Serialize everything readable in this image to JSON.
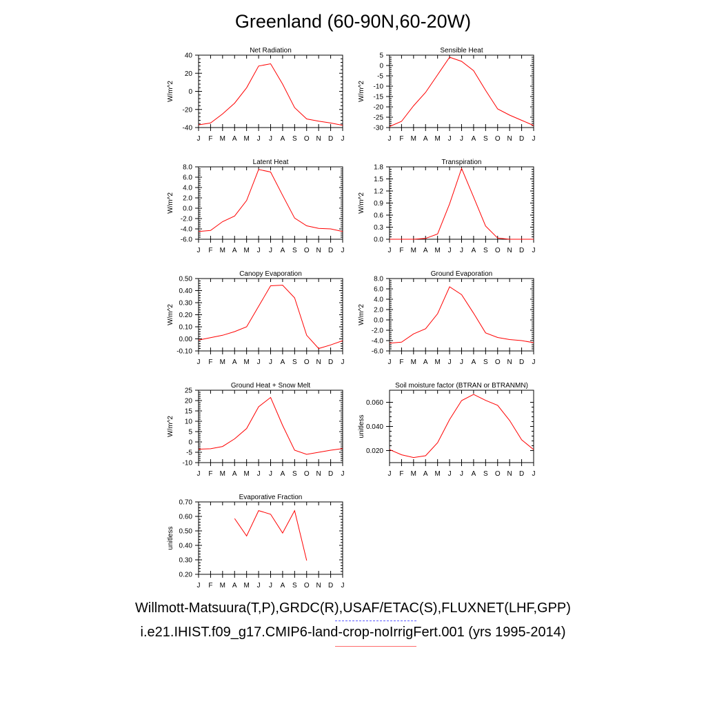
{
  "title": "Greenland (60-90N,60-20W)",
  "legend": {
    "obs": "Willmott-Matsuura(T,P),GRDC(R),USAF/ETAC(S),FLUXNET(LHF,GPP)",
    "model": "i.e21.IHIST.f09_g17.CMIP6-land-crop-noIrrigFert.001 (yrs 1995-2014)",
    "obs_color": "#5a5aff",
    "model_color": "#ff0000"
  },
  "chart_data": [
    {
      "type": "line",
      "title": "Net Radiation",
      "ylabel": "W/m^2",
      "categories": [
        "J",
        "F",
        "M",
        "A",
        "M",
        "J",
        "J",
        "A",
        "S",
        "O",
        "N",
        "D",
        "J"
      ],
      "ylim": [
        -40,
        40
      ],
      "yticks": [
        -40,
        -20,
        0,
        20,
        40
      ],
      "yticklabels": [
        "-40",
        "-20",
        "0",
        "20",
        "40"
      ],
      "series": [
        {
          "values": [
            -37,
            -35,
            -25,
            -13,
            4,
            28,
            30.5,
            8,
            -18,
            -30.5,
            -33,
            -35,
            -37.5
          ]
        }
      ]
    },
    {
      "type": "line",
      "title": "Sensible Heat",
      "ylabel": "W/m^2",
      "categories": [
        "J",
        "F",
        "M",
        "A",
        "M",
        "J",
        "J",
        "A",
        "S",
        "O",
        "N",
        "D",
        "J"
      ],
      "ylim": [
        -30,
        5
      ],
      "yticks": [
        -30,
        -25,
        -20,
        -15,
        -10,
        -5,
        0,
        5
      ],
      "yticklabels": [
        "-30",
        "-25",
        "-20",
        "-15",
        "-10",
        "-5",
        "0",
        "5"
      ],
      "series": [
        {
          "values": [
            -29.5,
            -27,
            -19.5,
            -13,
            -4.5,
            4,
            2,
            -2.5,
            -12,
            -21,
            -24,
            -26.5,
            -29
          ]
        }
      ]
    },
    {
      "type": "line",
      "title": "Latent Heat",
      "ylabel": "W/m^2",
      "categories": [
        "J",
        "F",
        "M",
        "A",
        "M",
        "J",
        "J",
        "A",
        "S",
        "O",
        "N",
        "D",
        "J"
      ],
      "ylim": [
        -6,
        8
      ],
      "yticks": [
        -6,
        -4,
        -2,
        0,
        2,
        4,
        6,
        8
      ],
      "yticklabels": [
        "-6.0",
        "-4.0",
        "-2.0",
        "0.0",
        "2.0",
        "4.0",
        "6.0",
        "8.0"
      ],
      "series": [
        {
          "values": [
            -4.5,
            -4.3,
            -2.6,
            -1.5,
            1.5,
            7.5,
            7.0,
            2.5,
            -1.9,
            -3.4,
            -3.9,
            -4.0,
            -4.5
          ]
        }
      ]
    },
    {
      "type": "line",
      "title": "Transpiration",
      "ylabel": "W/m^2",
      "categories": [
        "J",
        "F",
        "M",
        "A",
        "M",
        "J",
        "J",
        "A",
        "S",
        "O",
        "N",
        "D",
        "J"
      ],
      "ylim": [
        0,
        1.8
      ],
      "yticks": [
        0,
        0.3,
        0.6,
        0.9,
        1.2,
        1.5,
        1.8
      ],
      "yticklabels": [
        "0.0",
        "0.3",
        "0.6",
        "0.9",
        "1.2",
        "1.5",
        "1.8"
      ],
      "series": [
        {
          "values": [
            0,
            0,
            0,
            0.02,
            0.13,
            0.88,
            1.76,
            1.05,
            0.33,
            0.03,
            0,
            0,
            0
          ]
        }
      ]
    },
    {
      "type": "line",
      "title": "Canopy Evaporation",
      "ylabel": "W/m^2",
      "categories": [
        "J",
        "F",
        "M",
        "A",
        "M",
        "J",
        "J",
        "A",
        "S",
        "O",
        "N",
        "D",
        "J"
      ],
      "ylim": [
        -0.1,
        0.5
      ],
      "yticks": [
        -0.1,
        0,
        0.1,
        0.2,
        0.3,
        0.4,
        0.5
      ],
      "yticklabels": [
        "-0.10",
        "0.00",
        "0.10",
        "0.20",
        "0.30",
        "0.40",
        "0.50"
      ],
      "series": [
        {
          "values": [
            -0.01,
            0.01,
            0.03,
            0.06,
            0.1,
            0.27,
            0.44,
            0.445,
            0.34,
            0.03,
            -0.08,
            -0.05,
            -0.015
          ]
        }
      ]
    },
    {
      "type": "line",
      "title": "Ground Evaporation",
      "ylabel": "W/m^2",
      "categories": [
        "J",
        "F",
        "M",
        "A",
        "M",
        "J",
        "J",
        "A",
        "S",
        "O",
        "N",
        "D",
        "J"
      ],
      "ylim": [
        -6,
        8
      ],
      "yticks": [
        -6,
        -4,
        -2,
        0,
        2,
        4,
        6,
        8
      ],
      "yticklabels": [
        "-6.0",
        "-4.0",
        "-2.0",
        "0.0",
        "2.0",
        "4.0",
        "6.0",
        "8.0"
      ],
      "series": [
        {
          "values": [
            -4.5,
            -4.3,
            -2.7,
            -1.7,
            1.2,
            6.4,
            4.9,
            1.3,
            -2.5,
            -3.4,
            -3.8,
            -4.0,
            -4.4
          ]
        }
      ]
    },
    {
      "type": "line",
      "title": "Ground Heat + Snow Melt",
      "ylabel": "W/m^2",
      "categories": [
        "J",
        "F",
        "M",
        "A",
        "M",
        "J",
        "J",
        "A",
        "S",
        "O",
        "N",
        "D",
        "J"
      ],
      "ylim": [
        -10,
        25
      ],
      "yticks": [
        -10,
        -5,
        0,
        5,
        10,
        15,
        20,
        25
      ],
      "yticklabels": [
        "-10",
        "-5",
        "0",
        "5",
        "10",
        "15",
        "20",
        "25"
      ],
      "series": [
        {
          "values": [
            -3.5,
            -3.3,
            -2.2,
            1.5,
            6.5,
            17,
            21.5,
            8,
            -4,
            -6,
            -5,
            -4,
            -3.2
          ]
        }
      ]
    },
    {
      "type": "line",
      "title": "Soil moisture factor (BTRAN or BTRANMN)",
      "ylabel": "unitless",
      "categories": [
        "J",
        "F",
        "M",
        "A",
        "M",
        "J",
        "J",
        "A",
        "S",
        "O",
        "N",
        "D",
        "J"
      ],
      "ylim": [
        0.01,
        0.07
      ],
      "yticks": [
        0.02,
        0.04,
        0.06
      ],
      "yticklabels": [
        "0.020",
        "0.040",
        "0.060"
      ],
      "series": [
        {
          "values": [
            0.0208,
            0.0165,
            0.0142,
            0.0157,
            0.0265,
            0.0457,
            0.0614,
            0.0665,
            0.0616,
            0.0575,
            0.0449,
            0.0289,
            0.0208
          ]
        }
      ]
    },
    {
      "type": "line",
      "title": "Evaporative Fraction",
      "ylabel": "unitless",
      "categories": [
        "J",
        "F",
        "M",
        "A",
        "M",
        "J",
        "J",
        "A",
        "S",
        "O",
        "N",
        "D",
        "J"
      ],
      "ylim": [
        0.2,
        0.7
      ],
      "yticks": [
        0.2,
        0.3,
        0.4,
        0.5,
        0.6,
        0.7
      ],
      "yticklabels": [
        "0.20",
        "0.30",
        "0.40",
        "0.50",
        "0.60",
        "0.70"
      ],
      "series": [
        {
          "values": [
            null,
            null,
            null,
            0.585,
            0.465,
            0.64,
            0.615,
            0.485,
            0.64,
            0.295,
            null,
            null,
            null
          ]
        }
      ]
    }
  ]
}
